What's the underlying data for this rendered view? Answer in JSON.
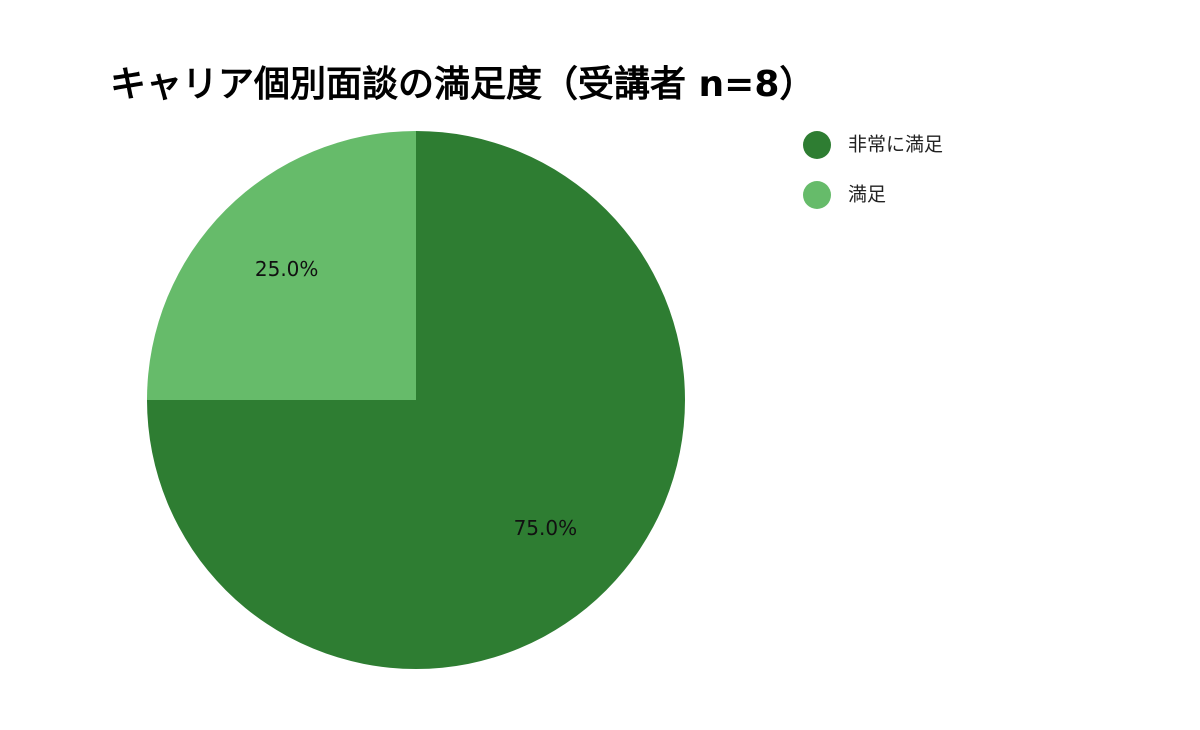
{
  "chart_data": {
    "type": "pie",
    "title": "キャリア個別面談の満足度（受講者 n=8）",
    "categories": [
      "非常に満足",
      "満足"
    ],
    "values": [
      75,
      25
    ],
    "value_labels": [
      "75.0%",
      "25.0%"
    ],
    "colors": [
      "#2e7d32",
      "#66bb6a"
    ],
    "legend": "right"
  }
}
